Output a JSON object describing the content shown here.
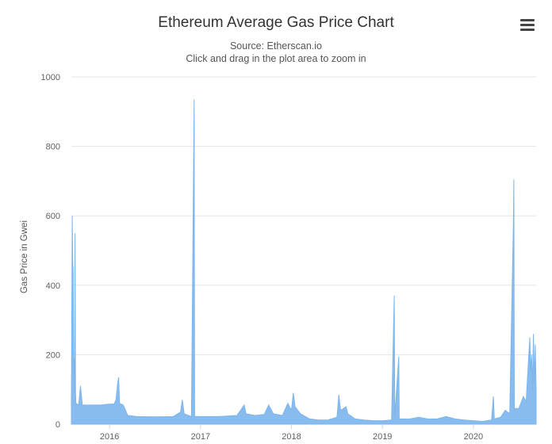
{
  "header": {
    "title": "Ethereum Average Gas Price Chart",
    "subtitle_source": "Source: Etherscan.io",
    "subtitle_hint": "Click and drag in the plot area to zoom in"
  },
  "menu": {
    "icon": "hamburger-icon"
  },
  "colors": {
    "series": "#7cb5ec",
    "grid": "#e6e6e6",
    "axis": "#ccd6eb"
  },
  "chart_data": {
    "type": "area",
    "title": "Ethereum Average Gas Price Chart",
    "subtitle": "Source: Etherscan.io",
    "xlabel": "",
    "ylabel": "Gas Price in Gwei",
    "ylim": [
      0,
      1000
    ],
    "xlim": [
      2015.58,
      2020.69
    ],
    "y_ticks": [
      "0",
      "200",
      "400",
      "600",
      "800",
      "1000"
    ],
    "x_ticks": [
      {
        "label": "2016",
        "value": 2016.0
      },
      {
        "label": "2017",
        "value": 2017.0
      },
      {
        "label": "2018",
        "value": 2018.0
      },
      {
        "label": "2019",
        "value": 2019.0
      },
      {
        "label": "2020",
        "value": 2020.0
      }
    ],
    "grid": true,
    "legend": "none",
    "series": [
      {
        "name": "",
        "points": [
          [
            2015.58,
            60
          ],
          [
            2015.59,
            600
          ],
          [
            2015.595,
            470
          ],
          [
            2015.6,
            440
          ],
          [
            2015.605,
            150
          ],
          [
            2015.61,
            190
          ],
          [
            2015.615,
            90
          ],
          [
            2015.62,
            550
          ],
          [
            2015.625,
            95
          ],
          [
            2015.63,
            60
          ],
          [
            2015.66,
            55
          ],
          [
            2015.68,
            110
          ],
          [
            2015.7,
            55
          ],
          [
            2015.8,
            55
          ],
          [
            2015.9,
            55
          ],
          [
            2016.0,
            58
          ],
          [
            2016.05,
            58
          ],
          [
            2016.07,
            70
          ],
          [
            2016.09,
            120
          ],
          [
            2016.1,
            135
          ],
          [
            2016.11,
            60
          ],
          [
            2016.15,
            55
          ],
          [
            2016.2,
            25
          ],
          [
            2016.3,
            22
          ],
          [
            2016.5,
            21
          ],
          [
            2016.7,
            22
          ],
          [
            2016.78,
            35
          ],
          [
            2016.8,
            70
          ],
          [
            2016.82,
            30
          ],
          [
            2016.9,
            22
          ],
          [
            2016.93,
            935
          ],
          [
            2016.935,
            22
          ],
          [
            2017.0,
            22
          ],
          [
            2017.2,
            22
          ],
          [
            2017.4,
            25
          ],
          [
            2017.48,
            55
          ],
          [
            2017.5,
            30
          ],
          [
            2017.6,
            25
          ],
          [
            2017.7,
            28
          ],
          [
            2017.75,
            55
          ],
          [
            2017.8,
            30
          ],
          [
            2017.9,
            25
          ],
          [
            2017.96,
            60
          ],
          [
            2018.0,
            40
          ],
          [
            2018.02,
            90
          ],
          [
            2018.04,
            50
          ],
          [
            2018.1,
            30
          ],
          [
            2018.2,
            15
          ],
          [
            2018.3,
            12
          ],
          [
            2018.4,
            12
          ],
          [
            2018.5,
            20
          ],
          [
            2018.52,
            85
          ],
          [
            2018.54,
            40
          ],
          [
            2018.6,
            50
          ],
          [
            2018.62,
            30
          ],
          [
            2018.7,
            15
          ],
          [
            2018.8,
            12
          ],
          [
            2018.9,
            10
          ],
          [
            2019.0,
            10
          ],
          [
            2019.1,
            12
          ],
          [
            2019.13,
            370
          ],
          [
            2019.135,
            20
          ],
          [
            2019.18,
            195
          ],
          [
            2019.185,
            15
          ],
          [
            2019.3,
            15
          ],
          [
            2019.4,
            20
          ],
          [
            2019.5,
            15
          ],
          [
            2019.6,
            15
          ],
          [
            2019.7,
            22
          ],
          [
            2019.8,
            15
          ],
          [
            2019.9,
            12
          ],
          [
            2020.0,
            10
          ],
          [
            2020.1,
            8
          ],
          [
            2020.2,
            12
          ],
          [
            2020.22,
            80
          ],
          [
            2020.23,
            15
          ],
          [
            2020.3,
            20
          ],
          [
            2020.35,
            40
          ],
          [
            2020.4,
            30
          ],
          [
            2020.44,
            575
          ],
          [
            2020.445,
            705
          ],
          [
            2020.45,
            45
          ],
          [
            2020.5,
            45
          ],
          [
            2020.55,
            80
          ],
          [
            2020.58,
            65
          ],
          [
            2020.62,
            250
          ],
          [
            2020.63,
            150
          ],
          [
            2020.64,
            200
          ],
          [
            2020.65,
            100
          ],
          [
            2020.66,
            260
          ],
          [
            2020.67,
            120
          ],
          [
            2020.68,
            230
          ],
          [
            2020.69,
            100
          ]
        ]
      }
    ]
  }
}
